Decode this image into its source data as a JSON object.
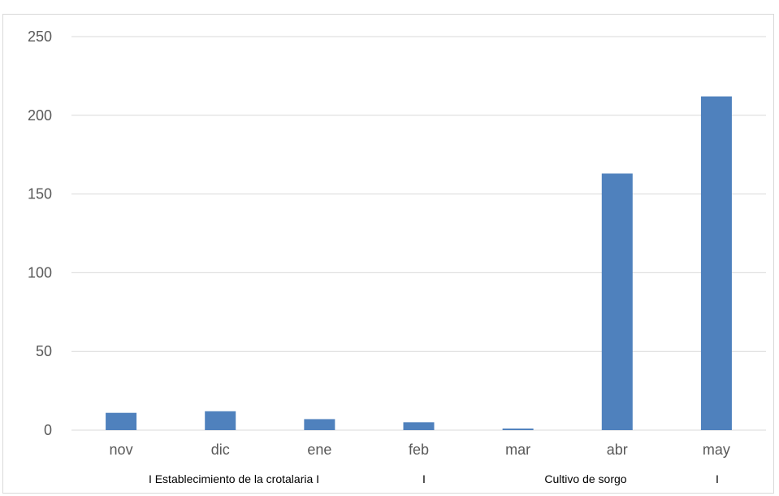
{
  "chart_data": {
    "type": "bar",
    "title": "",
    "xlabel": "",
    "ylabel": "",
    "categories": [
      "nov",
      "dic",
      "ene",
      "feb",
      "mar",
      "abr",
      "may"
    ],
    "values": [
      11,
      12,
      7,
      5,
      1,
      163,
      212
    ],
    "ylim": [
      0,
      250
    ],
    "yticks": [
      0,
      50,
      100,
      150,
      200,
      250
    ],
    "grid": true,
    "legend": "none",
    "bar_color": "#4f81bd",
    "gridline_color": "#d9d9d9",
    "phase_labels": [
      "I Establecimiento de la crotalaria I",
      "I",
      "Cultivo de sorgo",
      "I"
    ]
  }
}
